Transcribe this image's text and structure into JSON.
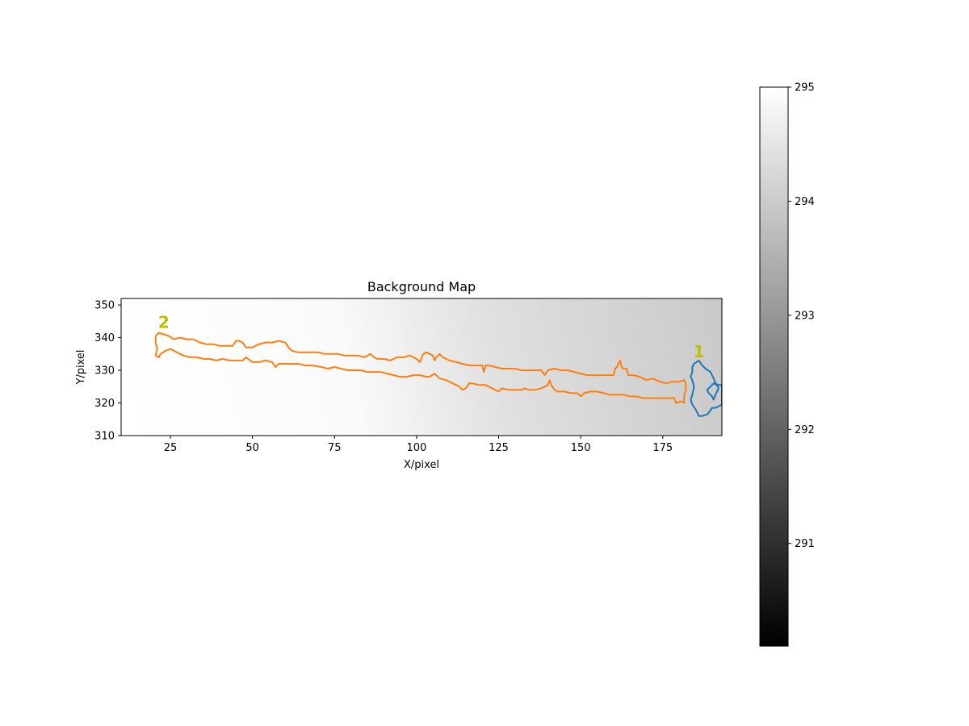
{
  "chart_data": {
    "type": "heatmap",
    "title": "Background Map",
    "xlabel": "X/pixel",
    "ylabel": "Y/pixel",
    "xlim": [
      10,
      193
    ],
    "ylim": [
      310,
      352
    ],
    "xticks": [
      25,
      50,
      75,
      100,
      125,
      150,
      175
    ],
    "yticks": [
      310,
      320,
      330,
      340,
      350
    ],
    "background": {
      "colormap": "gray",
      "value_left": 295.0,
      "value_right": 293.6,
      "note_direction": "lighter toward lower-left, darker toward right"
    },
    "colorbar": {
      "vmin": 290.1,
      "vmax": 295,
      "ticks": [
        291,
        292,
        293,
        294,
        295
      ]
    },
    "regions": [
      {
        "label": "1",
        "color": "#1f77b4",
        "label_color": "#bfbf00",
        "label_at": [
          186,
          334
        ],
        "contour": [
          [
            184.5,
            332
          ],
          [
            186,
            333
          ],
          [
            187,
            331.5
          ],
          [
            188,
            330.5
          ],
          [
            189.5,
            329.5
          ],
          [
            190.5,
            327.5
          ],
          [
            191,
            326
          ],
          [
            192,
            325.5
          ],
          [
            193,
            325.5
          ],
          [
            193,
            319.5
          ],
          [
            192,
            319
          ],
          [
            191,
            318.5
          ],
          [
            190,
            318.5
          ],
          [
            189,
            317
          ],
          [
            188.5,
            316.5
          ],
          [
            187,
            316
          ],
          [
            186,
            316
          ],
          [
            185,
            318
          ],
          [
            184,
            319.5
          ],
          [
            183.5,
            321
          ],
          [
            184,
            322.5
          ],
          [
            184.5,
            325
          ],
          [
            184,
            327
          ],
          [
            183.5,
            328
          ],
          [
            184,
            329.5
          ],
          [
            184,
            331
          ]
        ]
      },
      {
        "label": "",
        "color": "#1f77b4",
        "contour": [
          [
            190.5,
            326
          ],
          [
            189.5,
            325
          ],
          [
            188.5,
            324
          ],
          [
            189,
            323
          ],
          [
            190,
            322
          ],
          [
            190.5,
            321
          ],
          [
            191,
            322.5
          ],
          [
            191.5,
            323.5
          ],
          [
            192,
            324.5
          ],
          [
            191.5,
            325.5
          ]
        ]
      },
      {
        "label": "2",
        "color": "#ff7f0e",
        "label_color": "#bfbf00",
        "label_at": [
          23,
          343
        ],
        "contour": [
          [
            20.5,
            334.5
          ],
          [
            21,
            336.5
          ],
          [
            20.5,
            338.5
          ],
          [
            20.5,
            340.5
          ],
          [
            21.5,
            341.5
          ],
          [
            23,
            341
          ],
          [
            24.5,
            340.5
          ],
          [
            26,
            339.5
          ],
          [
            28,
            340
          ],
          [
            30,
            339.5
          ],
          [
            32,
            339.5
          ],
          [
            34,
            338.5
          ],
          [
            36,
            338
          ],
          [
            38,
            338
          ],
          [
            40,
            337.5
          ],
          [
            42,
            337.5
          ],
          [
            44,
            337.5
          ],
          [
            45,
            339
          ],
          [
            46,
            339
          ],
          [
            47,
            338.5
          ],
          [
            48,
            337
          ],
          [
            50,
            337
          ],
          [
            52,
            338
          ],
          [
            54,
            338.5
          ],
          [
            56,
            338.5
          ],
          [
            58,
            339
          ],
          [
            60,
            338.5
          ],
          [
            61,
            337
          ],
          [
            62,
            336
          ],
          [
            64,
            335.5
          ],
          [
            66,
            335.5
          ],
          [
            68,
            335.5
          ],
          [
            70,
            335.5
          ],
          [
            72,
            335
          ],
          [
            74,
            335
          ],
          [
            76,
            335
          ],
          [
            78,
            334.5
          ],
          [
            80,
            334.5
          ],
          [
            82,
            334.5
          ],
          [
            84,
            334
          ],
          [
            86,
            335
          ],
          [
            87,
            334
          ],
          [
            88,
            333.5
          ],
          [
            90,
            333.5
          ],
          [
            92,
            333
          ],
          [
            94,
            334
          ],
          [
            96,
            334
          ],
          [
            98,
            334.5
          ],
          [
            100,
            333.5
          ],
          [
            101,
            332.5
          ],
          [
            102,
            335
          ],
          [
            103,
            335.5
          ],
          [
            104,
            335
          ],
          [
            105,
            334.5
          ],
          [
            105.5,
            333
          ],
          [
            106,
            334
          ],
          [
            107,
            335
          ],
          [
            108,
            334
          ],
          [
            110,
            333
          ],
          [
            112,
            332.5
          ],
          [
            114,
            332
          ],
          [
            116,
            331.5
          ],
          [
            118,
            331.5
          ],
          [
            120,
            331.5
          ],
          [
            120.5,
            329.5
          ],
          [
            121,
            331.5
          ],
          [
            122,
            331.5
          ],
          [
            124,
            331
          ],
          [
            126,
            330.5
          ],
          [
            128,
            330.5
          ],
          [
            130,
            330.5
          ],
          [
            132,
            330
          ],
          [
            134,
            330
          ],
          [
            136,
            330
          ],
          [
            138,
            330
          ],
          [
            139,
            328.5
          ],
          [
            140,
            330
          ],
          [
            142,
            330.5
          ],
          [
            144,
            330
          ],
          [
            146,
            330
          ],
          [
            148,
            329.5
          ],
          [
            150,
            329
          ],
          [
            152,
            328.5
          ],
          [
            154,
            328.5
          ],
          [
            156,
            328.5
          ],
          [
            158,
            328.5
          ],
          [
            160,
            328.5
          ],
          [
            160.5,
            330.5
          ],
          [
            161,
            331
          ],
          [
            162,
            333
          ],
          [
            162.5,
            331
          ],
          [
            163,
            330.5
          ],
          [
            164,
            330.5
          ],
          [
            164.5,
            328.5
          ],
          [
            166,
            328.5
          ],
          [
            168,
            328
          ],
          [
            170,
            327
          ],
          [
            172,
            327.5
          ],
          [
            174,
            326.5
          ],
          [
            176,
            326
          ],
          [
            178,
            326.5
          ],
          [
            180,
            326.5
          ],
          [
            181.5,
            327
          ],
          [
            182,
            326
          ],
          [
            182,
            324
          ],
          [
            181.5,
            322
          ],
          [
            181.5,
            320
          ],
          [
            180.5,
            320.5
          ],
          [
            179,
            320
          ],
          [
            178.5,
            321.5
          ],
          [
            177,
            321.5
          ],
          [
            175,
            321.5
          ],
          [
            173,
            321.5
          ],
          [
            171,
            321.5
          ],
          [
            169,
            321.5
          ],
          [
            167,
            322
          ],
          [
            165,
            322
          ],
          [
            163,
            322.5
          ],
          [
            161,
            322.5
          ],
          [
            159,
            322.5
          ],
          [
            157,
            323
          ],
          [
            155,
            323.5
          ],
          [
            153,
            323.5
          ],
          [
            151,
            323
          ],
          [
            150,
            322
          ],
          [
            149,
            323
          ],
          [
            147,
            323
          ],
          [
            145,
            323.5
          ],
          [
            143,
            323.5
          ],
          [
            142,
            324
          ],
          [
            141,
            325.5
          ],
          [
            140.5,
            327
          ],
          [
            140,
            325.5
          ],
          [
            138,
            324.5
          ],
          [
            136,
            324
          ],
          [
            134,
            324
          ],
          [
            133,
            324.5
          ],
          [
            132,
            324
          ],
          [
            130,
            324
          ],
          [
            128,
            324
          ],
          [
            126,
            324.5
          ],
          [
            125,
            323.5
          ],
          [
            123,
            324.5
          ],
          [
            121,
            325.5
          ],
          [
            119,
            325.5
          ],
          [
            117,
            326
          ],
          [
            116,
            326
          ],
          [
            115,
            324.5
          ],
          [
            114,
            324
          ],
          [
            113,
            325
          ],
          [
            111,
            326
          ],
          [
            109,
            327
          ],
          [
            107,
            327.5
          ],
          [
            105.5,
            329
          ],
          [
            104,
            328
          ],
          [
            103,
            328
          ],
          [
            101,
            328.5
          ],
          [
            99,
            328.5
          ],
          [
            97,
            328
          ],
          [
            95,
            328
          ],
          [
            93,
            328.5
          ],
          [
            91,
            329
          ],
          [
            89,
            329.5
          ],
          [
            87,
            329.5
          ],
          [
            85,
            329.5
          ],
          [
            83,
            330
          ],
          [
            81,
            330
          ],
          [
            79,
            330
          ],
          [
            77,
            330.5
          ],
          [
            75,
            331
          ],
          [
            73,
            330.5
          ],
          [
            71,
            331
          ],
          [
            68,
            331.5
          ],
          [
            66,
            331.5
          ],
          [
            64,
            332
          ],
          [
            62,
            332
          ],
          [
            60,
            332
          ],
          [
            58,
            332
          ],
          [
            57,
            331
          ],
          [
            56,
            332.5
          ],
          [
            54,
            333
          ],
          [
            52,
            332.5
          ],
          [
            50,
            332.5
          ],
          [
            48,
            334
          ],
          [
            47,
            333
          ],
          [
            45,
            333
          ],
          [
            43,
            333
          ],
          [
            41,
            333.5
          ],
          [
            39,
            333
          ],
          [
            37,
            333.5
          ],
          [
            35,
            333.5
          ],
          [
            33,
            334
          ],
          [
            31,
            334
          ],
          [
            29,
            334.5
          ],
          [
            27,
            335.5
          ],
          [
            25,
            336.5
          ],
          [
            23.5,
            336
          ],
          [
            22,
            335
          ],
          [
            21.5,
            334
          ],
          [
            20.5,
            334.5
          ]
        ]
      }
    ]
  }
}
